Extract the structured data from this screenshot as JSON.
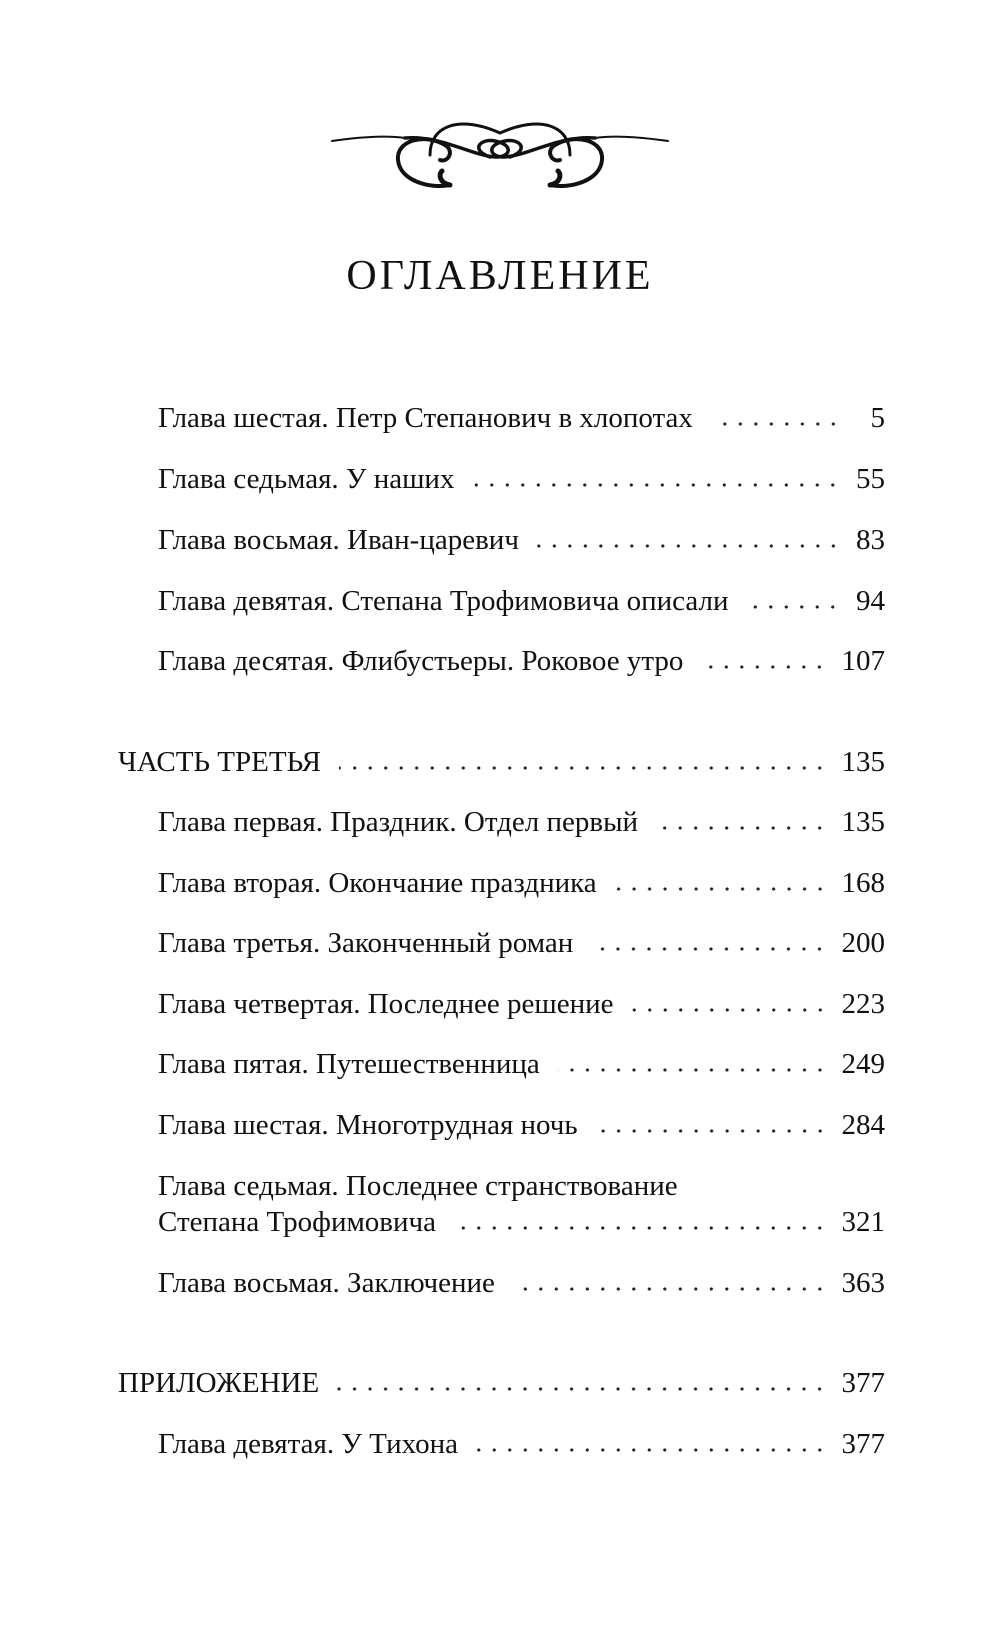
{
  "title": "ОГЛАВЛЕНИЕ",
  "entries": [
    {
      "type": "chapter",
      "title": "Глава шестая. Петр Степанович в хлопотах",
      "page": "5"
    },
    {
      "type": "chapter",
      "title": "Глава седьмая. У наших",
      "page": "55"
    },
    {
      "type": "chapter",
      "title": "Глава восьмая. Иван-царевич",
      "page": "83"
    },
    {
      "type": "chapter",
      "title": "Глава девятая. Степана Трофимовича описали",
      "page": "94"
    },
    {
      "type": "chapter",
      "title": "Глава десятая. Флибустьеры. Роковое утро",
      "page": "107"
    },
    {
      "type": "part",
      "title": "ЧАСТЬ ТРЕТЬЯ",
      "page": "135"
    },
    {
      "type": "chapter",
      "title": "Глава первая. Праздник. Отдел первый",
      "page": "135"
    },
    {
      "type": "chapter",
      "title": "Глава вторая. Окончание праздника",
      "page": "168"
    },
    {
      "type": "chapter",
      "title": "Глава третья. Законченный роман",
      "page": "200"
    },
    {
      "type": "chapter",
      "title": "Глава четвертая. Последнее решение",
      "page": "223"
    },
    {
      "type": "chapter",
      "title": "Глава пятая. Путешественница",
      "page": "249"
    },
    {
      "type": "chapter",
      "title": "Глава шестая. Многотрудная ночь",
      "page": "284"
    },
    {
      "type": "chapter",
      "title_line1": "Глава седьмая. Последнее странствование",
      "title": "Степана Трофимовича",
      "page": "321"
    },
    {
      "type": "chapter",
      "title": "Глава восьмая. Заключение",
      "page": "363"
    },
    {
      "type": "part",
      "title": "ПРИЛОЖЕНИЕ",
      "page": "377"
    },
    {
      "type": "chapter",
      "title": "Глава девятая. У Тихона",
      "page": "377"
    }
  ]
}
